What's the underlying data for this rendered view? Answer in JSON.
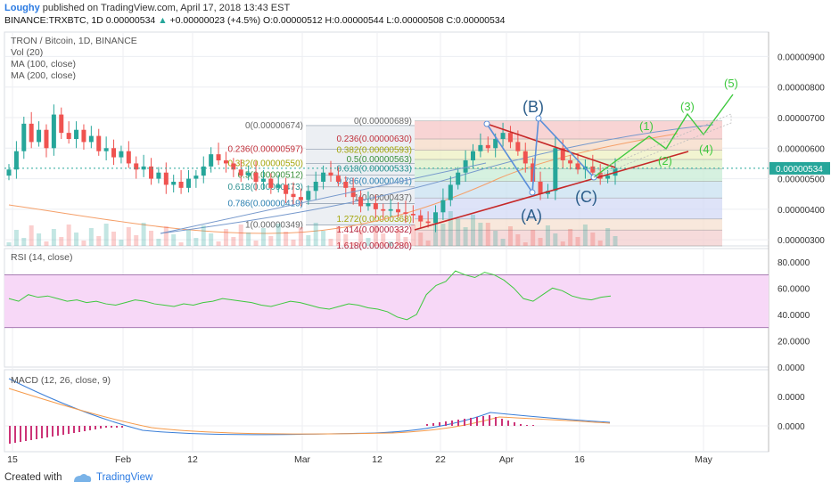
{
  "header": {
    "author": "Loughy",
    "published": "published on TradingView.com, April 17, 2018 13:43 EST",
    "symbol": "BINANCE:TRXBTC, 1D",
    "last": "0.00000534",
    "change": "+0.00000023 (+4.5%)",
    "ohlc": "O:0.00000512 H:0.00000544 L:0.00000508 C:0.00000534"
  },
  "legend": {
    "title": "TRON / Bitcoin, 1D, BINANCE",
    "vol": "Vol (20)",
    "ma100": "MA (100, close)",
    "ma200": "MA (200, close)",
    "rsi": "RSI (14, close)",
    "macd": "MACD (12, 26, close, 9)"
  },
  "colors": {
    "up": "#26a69a",
    "down": "#ef5350",
    "elliott": "#3ec93e",
    "abc": "#2b5d8a",
    "trend": "#c62828",
    "rsi_band": "#f7d8f7",
    "grid": "#eceef2"
  },
  "footer": {
    "made": "Created with",
    "brand": "TradingView"
  },
  "chart_data": [
    {
      "type": "candlestick",
      "title": "TRON / Bitcoin, 1D, BINANCE",
      "ylim": [
        2.8e-06,
        9.8e-06
      ],
      "y_ticks": [
        "0.00000900",
        "0.00000800",
        "0.00000700",
        "0.00000600",
        "0.00000500",
        "0.00000400",
        "0.00000300"
      ],
      "last_price": "0.00000534",
      "x_labels": [
        "15",
        "Feb",
        "12",
        "Mar",
        "12",
        "22",
        "Apr",
        "16",
        "May"
      ],
      "closes": [
        5.3,
        5.9,
        6.8,
        6.2,
        6.6,
        6.0,
        7.1,
        6.5,
        6.3,
        6.6,
        6.2,
        6.4,
        5.9,
        6.0,
        5.7,
        5.9,
        5.5,
        5.3,
        5.4,
        5.0,
        5.2,
        4.8,
        4.9,
        4.7,
        5.0,
        5.1,
        5.4,
        5.8,
        5.6,
        5.5,
        5.3,
        5.1,
        5.2,
        4.9,
        5.0,
        4.7,
        4.8,
        4.5,
        4.4,
        4.3,
        4.6,
        4.9,
        5.2,
        5.1,
        4.9,
        4.7,
        4.4,
        4.1,
        4.2,
        4.0,
        3.95,
        4.0,
        3.9,
        3.85,
        3.8,
        3.6,
        3.55,
        3.9,
        4.3,
        4.8,
        5.2,
        5.6,
        5.9,
        6.1,
        6.0,
        6.3,
        6.5,
        6.2,
        5.9,
        5.5,
        4.9,
        4.5,
        4.6,
        6.0,
        5.6,
        5.5,
        5.3,
        5.4,
        5.2,
        5.0,
        5.1,
        5.34
      ],
      "fib_left": [
        {
          "level": "0(0.00000674)",
          "price": 6.74
        },
        {
          "level": "0.236(0.00000597)",
          "price": 5.97
        },
        {
          "level": "0.382(0.00000550)",
          "price": 5.5
        },
        {
          "level": "0.5(0.00000512)",
          "price": 5.12
        },
        {
          "level": "0.618(0.00000473)",
          "price": 4.73
        },
        {
          "level": "0.786(0.00000419)",
          "price": 4.19
        },
        {
          "level": "1(0.00000349)",
          "price": 3.49
        }
      ],
      "fib_right": [
        {
          "level": "0(0.00000689)",
          "price": 6.89
        },
        {
          "level": "0.236(0.00000630)",
          "price": 6.3
        },
        {
          "level": "0.382(0.00000593)",
          "price": 5.93
        },
        {
          "level": "0.5(0.00000563)",
          "price": 5.63
        },
        {
          "level": "0.618(0.00000533)",
          "price": 5.33
        },
        {
          "level": "0.786(0.00000491)",
          "price": 4.91
        },
        {
          "level": "1(0.00000437)",
          "price": 4.37
        },
        {
          "level": "1.272(0.00000368)",
          "price": 3.68
        },
        {
          "level": "1.414(0.00000332)",
          "price": 3.32
        },
        {
          "level": "1.618(0.00000280)",
          "price": 2.8
        }
      ],
      "abc_labels": [
        "(A)",
        "(B)",
        "(C)"
      ],
      "wave_labels": [
        "(1)",
        "(2)",
        "(3)",
        "(4)",
        "(5)"
      ]
    },
    {
      "type": "line",
      "title": "RSI (14, close)",
      "ylim": [
        0,
        90
      ],
      "y_ticks": [
        "80.0000",
        "60.0000",
        "40.0000",
        "20.0000",
        "0.0000"
      ],
      "band": [
        30,
        70
      ],
      "values": [
        52,
        50,
        55,
        53,
        54,
        52,
        50,
        51,
        49,
        50,
        48,
        47,
        49,
        51,
        50,
        48,
        47,
        46,
        48,
        47,
        49,
        50,
        52,
        51,
        50,
        49,
        47,
        46,
        48,
        50,
        49,
        47,
        45,
        44,
        46,
        48,
        47,
        45,
        44,
        42,
        38,
        36,
        40,
        55,
        62,
        65,
        73,
        70,
        68,
        72,
        70,
        66,
        60,
        52,
        50,
        55,
        60,
        58,
        54,
        52,
        51,
        53,
        54
      ]
    },
    {
      "type": "line",
      "title": "MACD (12, 26, close, 9)",
      "y_ticks": [
        "0.0000",
        "0.0000"
      ]
    }
  ]
}
